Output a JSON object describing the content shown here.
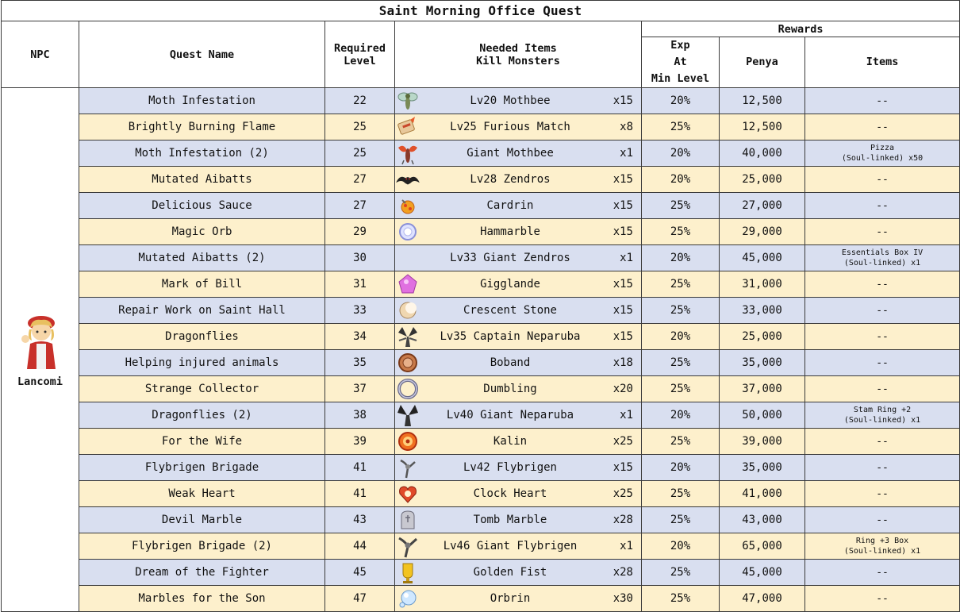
{
  "title": "Saint Morning Office Quest",
  "headers": {
    "npc": "NPC",
    "quest_name": "Quest Name",
    "required_level_1": "Required",
    "required_level_2": "Level",
    "needed_1": "Needed Items",
    "needed_2": "Kill Monsters",
    "rewards": "Rewards",
    "exp_1": "Exp",
    "exp_2": "At",
    "exp_3": "Min Level",
    "penya": "Penya",
    "items": "Items"
  },
  "npc_name": "Lancomi",
  "colors": {
    "row_blue": "#d9dff0",
    "row_yellow": "#fdf0cc",
    "border": "#3a3a3a"
  },
  "rows": [
    {
      "quest": "Moth Infestation",
      "level": "22",
      "icon": "mothbee-icon",
      "monster": "Lv20 Mothbee",
      "qty": "x15",
      "exp": "20%",
      "penya": "12,500",
      "item1": "--",
      "item2": ""
    },
    {
      "quest": "Brightly Burning Flame",
      "level": "25",
      "icon": "furious-match-icon",
      "monster": "Lv25 Furious Match",
      "qty": "x8",
      "exp": "25%",
      "penya": "12,500",
      "item1": "--",
      "item2": ""
    },
    {
      "quest": "Moth Infestation (2)",
      "level": "25",
      "icon": "giant-mothbee-icon",
      "monster": "Giant Mothbee",
      "qty": "x1",
      "exp": "20%",
      "penya": "40,000",
      "item1": "Pizza",
      "item2": "(Soul-linked) x50"
    },
    {
      "quest": "Mutated Aibatts",
      "level": "27",
      "icon": "zendros-icon",
      "monster": "Lv28 Zendros",
      "qty": "x15",
      "exp": "20%",
      "penya": "25,000",
      "item1": "--",
      "item2": ""
    },
    {
      "quest": "Delicious Sauce",
      "level": "27",
      "icon": "cardrin-icon",
      "monster": "Cardrin",
      "qty": "x15",
      "exp": "25%",
      "penya": "27,000",
      "item1": "--",
      "item2": ""
    },
    {
      "quest": "Magic Orb",
      "level": "29",
      "icon": "hammarble-icon",
      "monster": "Hammarble",
      "qty": "x15",
      "exp": "25%",
      "penya": "29,000",
      "item1": "--",
      "item2": ""
    },
    {
      "quest": "Mutated Aibatts (2)",
      "level": "30",
      "icon": "giant-zendros-icon",
      "monster": "Lv33 Giant Zendros",
      "qty": "x1",
      "exp": "20%",
      "penya": "45,000",
      "item1": "Essentials Box IV",
      "item2": "(Soul-linked) x1"
    },
    {
      "quest": "Mark of Bill",
      "level": "31",
      "icon": "gigglande-icon",
      "monster": "Gigglande",
      "qty": "x15",
      "exp": "25%",
      "penya": "31,000",
      "item1": "--",
      "item2": ""
    },
    {
      "quest": "Repair Work on Saint Hall",
      "level": "33",
      "icon": "crescent-stone-icon",
      "monster": "Crescent Stone",
      "qty": "x15",
      "exp": "25%",
      "penya": "33,000",
      "item1": "--",
      "item2": ""
    },
    {
      "quest": "Dragonflies",
      "level": "34",
      "icon": "captain-neparuba-icon",
      "monster": "Lv35 Captain Neparuba",
      "qty": "x15",
      "exp": "20%",
      "penya": "25,000",
      "item1": "--",
      "item2": ""
    },
    {
      "quest": "Helping injured animals",
      "level": "35",
      "icon": "boband-icon",
      "monster": "Boband",
      "qty": "x18",
      "exp": "25%",
      "penya": "35,000",
      "item1": "--",
      "item2": ""
    },
    {
      "quest": "Strange Collector",
      "level": "37",
      "icon": "dumbling-icon",
      "monster": "Dumbling",
      "qty": "x20",
      "exp": "25%",
      "penya": "37,000",
      "item1": "--",
      "item2": ""
    },
    {
      "quest": "Dragonflies (2)",
      "level": "38",
      "icon": "giant-neparuba-icon",
      "monster": "Lv40 Giant Neparuba",
      "qty": "x1",
      "exp": "20%",
      "penya": "50,000",
      "item1": "Stam Ring +2",
      "item2": "(Soul-linked) x1"
    },
    {
      "quest": "For the Wife",
      "level": "39",
      "icon": "kalin-icon",
      "monster": "Kalin",
      "qty": "x25",
      "exp": "25%",
      "penya": "39,000",
      "item1": "--",
      "item2": ""
    },
    {
      "quest": "Flybrigen Brigade",
      "level": "41",
      "icon": "flybrigen-icon",
      "monster": "Lv42 Flybrigen",
      "qty": "x15",
      "exp": "20%",
      "penya": "35,000",
      "item1": "--",
      "item2": ""
    },
    {
      "quest": "Weak Heart",
      "level": "41",
      "icon": "clock-heart-icon",
      "monster": "Clock Heart",
      "qty": "x25",
      "exp": "25%",
      "penya": "41,000",
      "item1": "--",
      "item2": ""
    },
    {
      "quest": "Devil Marble",
      "level": "43",
      "icon": "tomb-marble-icon",
      "monster": "Tomb Marble",
      "qty": "x28",
      "exp": "25%",
      "penya": "43,000",
      "item1": "--",
      "item2": ""
    },
    {
      "quest": "Flybrigen Brigade (2)",
      "level": "44",
      "icon": "giant-flybrigen-icon",
      "monster": "Lv46 Giant Flybrigen",
      "qty": "x1",
      "exp": "20%",
      "penya": "65,000",
      "item1": "Ring +3 Box",
      "item2": "(Soul-linked) x1"
    },
    {
      "quest": "Dream of the Fighter",
      "level": "45",
      "icon": "golden-fist-icon",
      "monster": "Golden Fist",
      "qty": "x28",
      "exp": "25%",
      "penya": "45,000",
      "item1": "--",
      "item2": ""
    },
    {
      "quest": "Marbles for the Son",
      "level": "47",
      "icon": "orbrin-icon",
      "monster": "Orbrin",
      "qty": "x30",
      "exp": "25%",
      "penya": "47,000",
      "item1": "--",
      "item2": ""
    }
  ]
}
